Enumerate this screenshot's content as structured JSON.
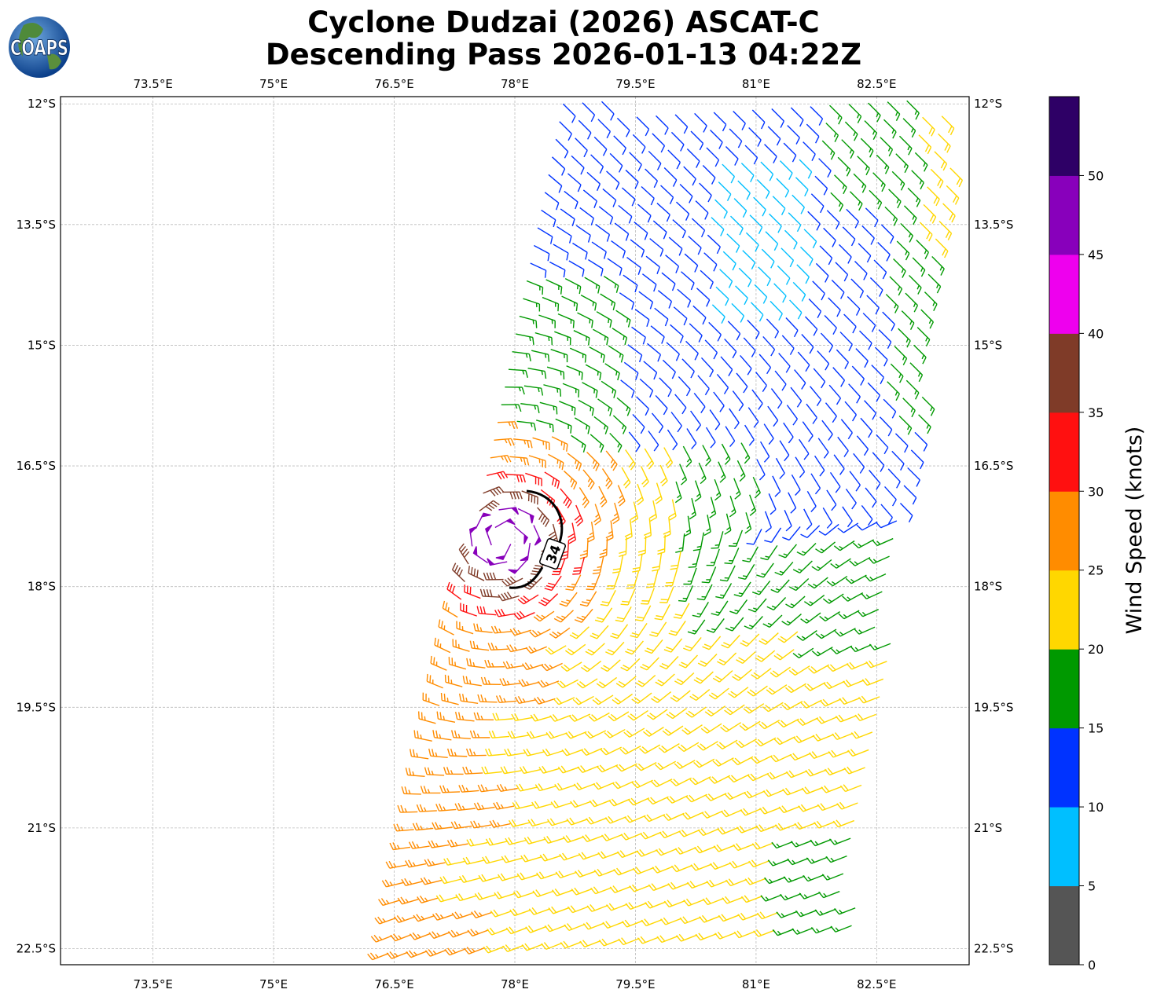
{
  "title": {
    "line1": "Cyclone Dudzai (2026) ASCAT-C",
    "line2": "Descending Pass 2026-01-13 04:22Z"
  },
  "logo": {
    "text": "COAPS"
  },
  "map": {
    "lon_ticks": [
      "73.5°E",
      "75°E",
      "76.5°E",
      "78°E",
      "79.5°E",
      "81°E",
      "82.5°E"
    ],
    "lon_values": [
      73.5,
      75,
      76.5,
      78,
      79.5,
      81,
      82.5
    ],
    "lat_ticks": [
      "12°S",
      "13.5°S",
      "15°S",
      "16.5°S",
      "18°S",
      "19.5°S",
      "21°S",
      "22.5°S"
    ],
    "lat_values": [
      -12,
      -13.5,
      -15,
      -16.5,
      -18,
      -19.5,
      -21,
      -22.5
    ],
    "lon_range": [
      72.35,
      83.65
    ],
    "lat_range": [
      -22.7,
      -11.91
    ],
    "contour_label": "34"
  },
  "colorbar": {
    "label": "Wind Speed (knots)",
    "ticks": [
      "0",
      "5",
      "10",
      "15",
      "20",
      "25",
      "30",
      "35",
      "40",
      "45",
      "50"
    ],
    "colors": [
      "#555555",
      "#00bfff",
      "#0033ff",
      "#009900",
      "#ffd700",
      "#ff8c00",
      "#ff1010",
      "#7f3b28",
      "#ee00ee",
      "#8800bb",
      "#2e0066"
    ]
  },
  "chart_data": {
    "type": "wind-barb-map",
    "title": "Cyclone Dudzai (2026) ASCAT-C Descending Pass 2026-01-13 04:22Z",
    "units": "knots",
    "speed_bins": [
      0,
      5,
      10,
      15,
      20,
      25,
      30,
      35,
      40,
      45,
      50,
      55
    ],
    "contour_levels": [
      34
    ]
  }
}
